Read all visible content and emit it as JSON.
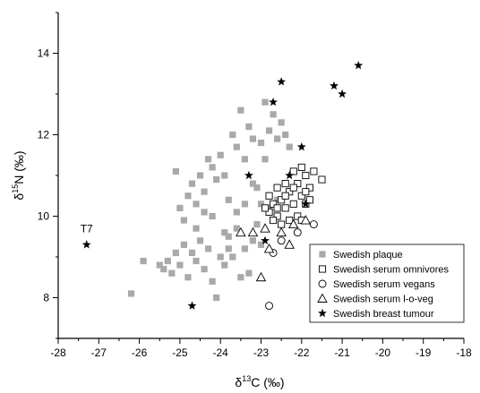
{
  "chart_data": {
    "type": "scatter",
    "title": "",
    "xlabel_base": "δ",
    "xlabel_sup": "13",
    "xlabel_rest": "C (‰)",
    "ylabel_base": "δ",
    "ylabel_sup": "15",
    "ylabel_rest": "N (‰)",
    "xlim": [
      -28,
      -18
    ],
    "ylim": [
      7,
      15
    ],
    "xticks": [
      -28,
      -27,
      -26,
      -25,
      -24,
      -23,
      -22,
      -21,
      -20,
      -19,
      -18
    ],
    "yticks": [
      8,
      10,
      12,
      14
    ],
    "legend_position": "bottom-right",
    "annotations": [
      {
        "text": "T7",
        "x": -27.3,
        "y": 9.6
      }
    ],
    "series": [
      {
        "name": "Swedish plaque",
        "marker": "filled-square",
        "color": "#a9a9a9",
        "points": [
          [
            -26.2,
            8.1
          ],
          [
            -25.9,
            8.9
          ],
          [
            -25.5,
            8.8
          ],
          [
            -25.4,
            8.7
          ],
          [
            -25.3,
            8.9
          ],
          [
            -25.2,
            8.6
          ],
          [
            -25.1,
            9.1
          ],
          [
            -25.0,
            8.8
          ],
          [
            -24.9,
            9.3
          ],
          [
            -24.8,
            8.5
          ],
          [
            -24.7,
            9.1
          ],
          [
            -24.6,
            8.9
          ],
          [
            -24.5,
            9.4
          ],
          [
            -24.4,
            8.7
          ],
          [
            -24.3,
            9.2
          ],
          [
            -24.2,
            8.4
          ],
          [
            -24.1,
            8.0
          ],
          [
            -24.0,
            9.0
          ],
          [
            -23.9,
            8.8
          ],
          [
            -23.8,
            9.5
          ],
          [
            -23.7,
            9.0
          ],
          [
            -23.6,
            9.7
          ],
          [
            -23.5,
            8.5
          ],
          [
            -23.4,
            9.2
          ],
          [
            -23.3,
            8.6
          ],
          [
            -23.2,
            9.4
          ],
          [
            -23.1,
            9.8
          ],
          [
            -23.0,
            9.3
          ],
          [
            -25.1,
            11.1
          ],
          [
            -25.0,
            10.2
          ],
          [
            -24.9,
            9.9
          ],
          [
            -24.8,
            10.5
          ],
          [
            -24.7,
            10.8
          ],
          [
            -24.6,
            10.3
          ],
          [
            -24.5,
            11.0
          ],
          [
            -24.4,
            10.6
          ],
          [
            -24.3,
            11.4
          ],
          [
            -24.2,
            11.2
          ],
          [
            -24.1,
            10.9
          ],
          [
            -24.0,
            11.5
          ],
          [
            -23.9,
            11.0
          ],
          [
            -23.8,
            10.4
          ],
          [
            -23.7,
            12.0
          ],
          [
            -23.6,
            11.7
          ],
          [
            -23.5,
            12.6
          ],
          [
            -23.4,
            11.4
          ],
          [
            -23.3,
            12.2
          ],
          [
            -23.2,
            11.9
          ],
          [
            -23.1,
            10.7
          ],
          [
            -23.0,
            11.8
          ],
          [
            -22.9,
            12.8
          ],
          [
            -22.8,
            12.1
          ],
          [
            -22.7,
            12.5
          ],
          [
            -22.6,
            11.9
          ],
          [
            -22.5,
            12.3
          ],
          [
            -22.4,
            12.0
          ],
          [
            -22.3,
            11.7
          ],
          [
            -24.2,
            10.0
          ],
          [
            -23.9,
            9.6
          ],
          [
            -23.6,
            10.1
          ],
          [
            -23.4,
            10.3
          ],
          [
            -23.0,
            10.3
          ],
          [
            -22.8,
            10.2
          ],
          [
            -22.6,
            10.4
          ],
          [
            -24.6,
            9.7
          ],
          [
            -23.2,
            10.8
          ],
          [
            -22.9,
            11.4
          ],
          [
            -23.8,
            9.2
          ],
          [
            -24.4,
            10.1
          ]
        ]
      },
      {
        "name": "Swedish serum omnivores",
        "marker": "open-square",
        "color": "#000000",
        "points": [
          [
            -22.8,
            10.1
          ],
          [
            -22.7,
            10.3
          ],
          [
            -22.6,
            10.0
          ],
          [
            -22.5,
            10.4
          ],
          [
            -22.4,
            10.2
          ],
          [
            -22.3,
            10.6
          ],
          [
            -22.2,
            10.3
          ],
          [
            -22.1,
            10.8
          ],
          [
            -22.0,
            10.5
          ],
          [
            -21.9,
            11.0
          ],
          [
            -21.8,
            10.7
          ],
          [
            -21.7,
            11.1
          ],
          [
            -21.5,
            10.9
          ],
          [
            -22.2,
            11.1
          ],
          [
            -22.0,
            11.2
          ],
          [
            -21.9,
            10.3
          ],
          [
            -22.4,
            10.8
          ],
          [
            -22.6,
            10.7
          ],
          [
            -22.8,
            10.5
          ],
          [
            -22.3,
            9.9
          ],
          [
            -22.1,
            10.0
          ],
          [
            -22.5,
            9.8
          ],
          [
            -21.8,
            10.4
          ],
          [
            -22.7,
            9.9
          ],
          [
            -22.4,
            10.5
          ],
          [
            -22.2,
            10.7
          ],
          [
            -21.9,
            10.6
          ],
          [
            -22.6,
            10.2
          ],
          [
            -22.0,
            9.9
          ],
          [
            -22.9,
            10.2
          ]
        ]
      },
      {
        "name": "Swedish serum vegans",
        "marker": "open-circle",
        "color": "#000000",
        "points": [
          [
            -22.7,
            9.1
          ],
          [
            -22.5,
            9.4
          ],
          [
            -22.1,
            9.6
          ],
          [
            -21.7,
            9.8
          ],
          [
            -22.8,
            7.8
          ]
        ]
      },
      {
        "name": "Swedish serum l-o-veg",
        "marker": "open-triangle",
        "color": "#000000",
        "points": [
          [
            -23.5,
            9.6
          ],
          [
            -23.2,
            9.6
          ],
          [
            -22.9,
            9.7
          ],
          [
            -22.3,
            9.3
          ],
          [
            -22.8,
            9.2
          ],
          [
            -22.5,
            9.6
          ],
          [
            -22.2,
            9.8
          ],
          [
            -21.9,
            9.9
          ],
          [
            -23.0,
            8.5
          ]
        ]
      },
      {
        "name": "Swedish breast tumour",
        "marker": "star",
        "color": "#000000",
        "points": [
          [
            -27.3,
            9.3
          ],
          [
            -24.7,
            7.8
          ],
          [
            -22.9,
            9.4
          ],
          [
            -22.7,
            12.8
          ],
          [
            -22.5,
            13.3
          ],
          [
            -23.3,
            11.0
          ],
          [
            -22.3,
            11.0
          ],
          [
            -22.0,
            11.7
          ],
          [
            -21.9,
            10.3
          ],
          [
            -21.2,
            13.2
          ],
          [
            -21.0,
            13.0
          ],
          [
            -20.6,
            13.7
          ]
        ]
      }
    ]
  }
}
